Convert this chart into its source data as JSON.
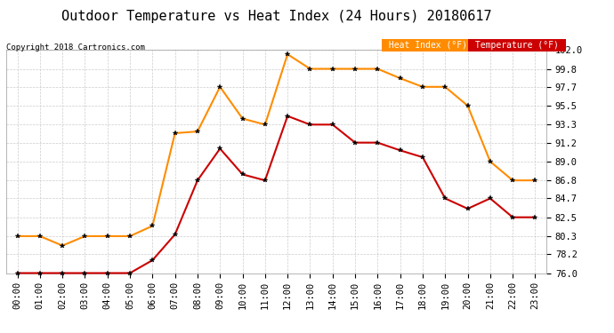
{
  "title": "Outdoor Temperature vs Heat Index (24 Hours) 20180617",
  "copyright": "Copyright 2018 Cartronics.com",
  "x_labels": [
    "00:00",
    "01:00",
    "02:00",
    "03:00",
    "04:00",
    "05:00",
    "06:00",
    "07:00",
    "08:00",
    "09:00",
    "10:00",
    "11:00",
    "12:00",
    "13:00",
    "14:00",
    "15:00",
    "16:00",
    "17:00",
    "18:00",
    "19:00",
    "20:00",
    "21:00",
    "22:00",
    "23:00"
  ],
  "heat_index": [
    80.3,
    80.3,
    79.2,
    80.3,
    80.3,
    80.3,
    81.5,
    92.3,
    92.5,
    97.7,
    94.0,
    93.3,
    101.5,
    99.8,
    99.8,
    99.8,
    99.8,
    98.7,
    97.7,
    97.7,
    95.5,
    89.0,
    86.8,
    86.8
  ],
  "temperature": [
    76.0,
    76.0,
    76.0,
    76.0,
    76.0,
    76.0,
    77.5,
    80.5,
    86.8,
    90.5,
    87.5,
    86.8,
    94.3,
    93.3,
    93.3,
    91.2,
    91.2,
    90.3,
    89.5,
    84.7,
    83.5,
    84.7,
    82.5,
    82.5
  ],
  "heat_index_color": "#FF8C00",
  "temperature_color": "#CC0000",
  "ylim_min": 76.0,
  "ylim_max": 102.0,
  "yticks": [
    76.0,
    78.2,
    80.3,
    82.5,
    84.7,
    86.8,
    89.0,
    91.2,
    93.3,
    95.5,
    97.7,
    99.8,
    102.0
  ],
  "background_color": "#ffffff",
  "grid_color": "#cccccc",
  "title_fontsize": 11,
  "legend_heat_label": "Heat Index (°F)",
  "legend_temp_label": "Temperature (°F)",
  "tick_fontsize": 7.5,
  "marker_size": 4
}
